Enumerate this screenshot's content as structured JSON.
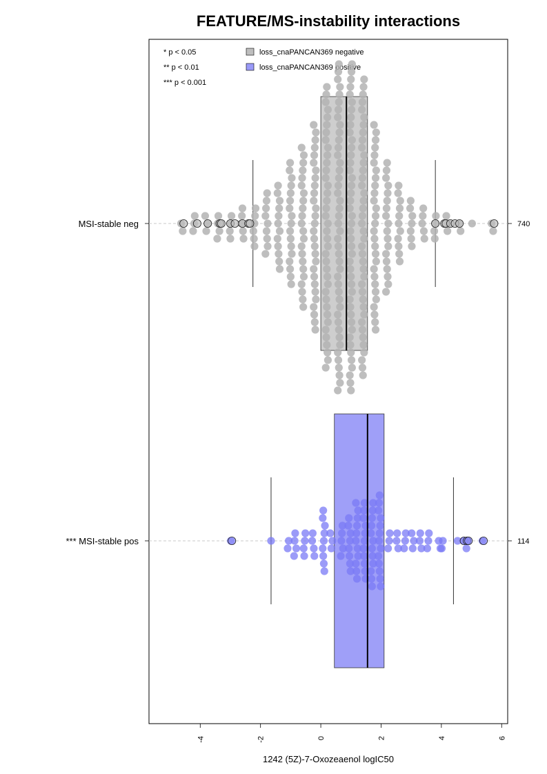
{
  "chart_data": {
    "type": "beeswarm-boxplot",
    "title": "FEATURE/MS-instability interactions",
    "xlabel": "1242 (5Z)-7-Oxozeaenol logIC50",
    "xlim": [
      -5.7,
      6.2
    ],
    "xticks": [
      -4,
      -2,
      0,
      2,
      4,
      6
    ],
    "significance_legend": [
      "* p < 0.05",
      "** p < 0.01",
      "*** p < 0.001"
    ],
    "legend": [
      {
        "label": "loss_cnaPANCAN369 negative",
        "color": "#bebebe"
      },
      {
        "label": "loss_cnaPANCAN369 positive",
        "color": "#9a9af8"
      }
    ],
    "groups": [
      {
        "label": "MSI-stable neg",
        "count": "740",
        "color": "#bebebe",
        "box": {
          "q1": 0.0,
          "median": 0.85,
          "q3": 1.55,
          "whisker_low": -2.25,
          "whisker_high": 3.8
        },
        "distribution": [
          {
            "x": -4.6,
            "n": 2
          },
          {
            "x": -4.2,
            "n": 3
          },
          {
            "x": -3.8,
            "n": 3
          },
          {
            "x": -3.4,
            "n": 4
          },
          {
            "x": -3.0,
            "n": 4
          },
          {
            "x": -2.6,
            "n": 5
          },
          {
            "x": -2.2,
            "n": 6
          },
          {
            "x": -1.8,
            "n": 9
          },
          {
            "x": -1.4,
            "n": 12
          },
          {
            "x": -1.0,
            "n": 17
          },
          {
            "x": -0.6,
            "n": 22
          },
          {
            "x": -0.2,
            "n": 28
          },
          {
            "x": 0.2,
            "n": 38
          },
          {
            "x": 0.6,
            "n": 44
          },
          {
            "x": 1.0,
            "n": 44
          },
          {
            "x": 1.4,
            "n": 40
          },
          {
            "x": 1.8,
            "n": 28
          },
          {
            "x": 2.2,
            "n": 18
          },
          {
            "x": 2.6,
            "n": 11
          },
          {
            "x": 3.0,
            "n": 7
          },
          {
            "x": 3.4,
            "n": 5
          },
          {
            "x": 3.8,
            "n": 4
          },
          {
            "x": 4.2,
            "n": 3
          },
          {
            "x": 4.6,
            "n": 2
          },
          {
            "x": 5.0,
            "n": 1
          },
          {
            "x": 5.7,
            "n": 2
          }
        ],
        "outliers": [
          -4.55,
          -4.1,
          -3.75,
          -3.35,
          -3.3,
          -3.0,
          -2.85,
          -2.6,
          -2.4,
          -2.35,
          3.8,
          4.1,
          4.15,
          4.3,
          4.45,
          4.6,
          5.75
        ]
      },
      {
        "label": "*** MSI-stable pos",
        "count": "114",
        "color": "#9a9af8",
        "box": {
          "q1": 0.45,
          "median": 1.55,
          "q3": 2.1,
          "whisker_low": -1.65,
          "whisker_high": 4.4
        },
        "distribution": [
          {
            "x": -2.95,
            "n": 1
          },
          {
            "x": -1.65,
            "n": 1
          },
          {
            "x": -1.1,
            "n": 2
          },
          {
            "x": -0.85,
            "n": 4
          },
          {
            "x": -0.55,
            "n": 4
          },
          {
            "x": -0.25,
            "n": 4
          },
          {
            "x": 0.1,
            "n": 9
          },
          {
            "x": 0.35,
            "n": 3
          },
          {
            "x": 0.7,
            "n": 5
          },
          {
            "x": 0.95,
            "n": 8
          },
          {
            "x": 1.2,
            "n": 11
          },
          {
            "x": 1.45,
            "n": 11
          },
          {
            "x": 1.7,
            "n": 12
          },
          {
            "x": 1.95,
            "n": 13
          },
          {
            "x": 2.25,
            "n": 3
          },
          {
            "x": 2.55,
            "n": 3
          },
          {
            "x": 2.8,
            "n": 3
          },
          {
            "x": 3.05,
            "n": 3
          },
          {
            "x": 3.3,
            "n": 3
          },
          {
            "x": 3.55,
            "n": 3
          },
          {
            "x": 3.95,
            "n": 2
          },
          {
            "x": 4.05,
            "n": 2
          },
          {
            "x": 4.5,
            "n": 1
          },
          {
            "x": 4.75,
            "n": 1
          },
          {
            "x": 4.85,
            "n": 2
          },
          {
            "x": 5.4,
            "n": 1
          }
        ],
        "outliers": [
          -2.95,
          4.75,
          4.85,
          4.9,
          5.4
        ]
      }
    ]
  }
}
